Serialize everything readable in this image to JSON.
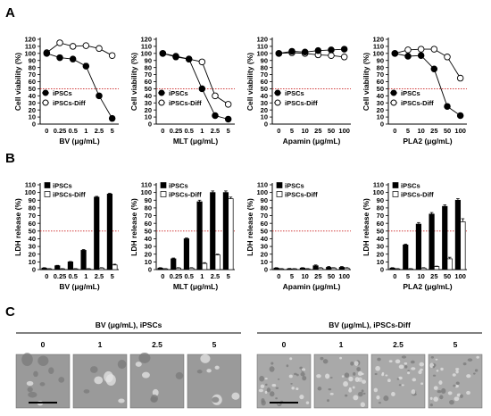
{
  "panel_labels": {
    "a": "A",
    "b": "B",
    "c": "C"
  },
  "legend": {
    "s1": "iPSCs",
    "s2": "iPSCs-Diff"
  },
  "colors": {
    "s1": "#000000",
    "s2": "#ffffff",
    "threshold": "#cc2222"
  },
  "chart_data": [
    {
      "type": "line",
      "panel": "A",
      "xlabel": "BV (μg/mL)",
      "ylabel": "Cell viability (%)",
      "categories": [
        "0",
        "0.25",
        "0.5",
        "1",
        "2.5",
        "5"
      ],
      "ylim": [
        0,
        120
      ],
      "ytick_step": 10,
      "threshold": 50,
      "series": [
        {
          "name": "iPSCs",
          "values": [
            100,
            94,
            92,
            82,
            40,
            8
          ],
          "errors": [
            0,
            3,
            2,
            4,
            2,
            1
          ]
        },
        {
          "name": "iPSCs-Diff",
          "values": [
            101,
            115,
            110,
            111,
            107,
            97
          ],
          "errors": [
            1,
            2,
            2,
            2,
            2,
            2
          ]
        }
      ]
    },
    {
      "type": "line",
      "panel": "A",
      "xlabel": "MLT (μg/mL)",
      "ylabel": "Cell viability (%)",
      "categories": [
        "0",
        "0.25",
        "0.5",
        "1",
        "2.5",
        "5"
      ],
      "ylim": [
        0,
        120
      ],
      "ytick_step": 10,
      "threshold": 50,
      "series": [
        {
          "name": "iPSCs",
          "values": [
            100,
            95,
            92,
            50,
            12,
            7
          ],
          "errors": [
            0,
            2,
            2,
            2,
            1,
            1
          ]
        },
        {
          "name": "iPSCs-Diff",
          "values": [
            100,
            96,
            92,
            88,
            40,
            28
          ],
          "errors": [
            0,
            2,
            2,
            2,
            2,
            2
          ]
        }
      ]
    },
    {
      "type": "line",
      "panel": "A",
      "xlabel": "Apamin (μg/mL)",
      "ylabel": "Cell viability (%)",
      "categories": [
        "0",
        "5",
        "10",
        "25",
        "50",
        "100"
      ],
      "ylim": [
        0,
        120
      ],
      "ytick_step": 10,
      "threshold": 50,
      "series": [
        {
          "name": "iPSCs",
          "values": [
            100,
            103,
            102,
            104,
            105,
            106
          ],
          "errors": [
            0,
            3,
            2,
            3,
            3,
            2
          ]
        },
        {
          "name": "iPSCs-Diff",
          "values": [
            100,
            101,
            100,
            98,
            97,
            95
          ],
          "errors": [
            0,
            2,
            2,
            2,
            2,
            2
          ]
        }
      ]
    },
    {
      "type": "line",
      "panel": "A",
      "xlabel": "PLA2 (μg/mL)",
      "ylabel": "Cell viability (%)",
      "categories": [
        "0",
        "5",
        "10",
        "25",
        "50",
        "100"
      ],
      "ylim": [
        0,
        120
      ],
      "ytick_step": 10,
      "threshold": 50,
      "series": [
        {
          "name": "iPSCs",
          "values": [
            100,
            96,
            97,
            78,
            25,
            12
          ],
          "errors": [
            0,
            3,
            3,
            3,
            2,
            2
          ]
        },
        {
          "name": "iPSCs-Diff",
          "values": [
            100,
            105,
            106,
            106,
            95,
            65
          ],
          "errors": [
            0,
            2,
            2,
            2,
            2,
            2
          ]
        }
      ]
    },
    {
      "type": "bar",
      "panel": "B",
      "xlabel": "BV (μg/mL)",
      "ylabel": "LDH release (%)",
      "categories": [
        "0",
        "0.25",
        "0.5",
        "1",
        "2.5",
        "5"
      ],
      "ylim": [
        0,
        110
      ],
      "ytick_step": 10,
      "threshold": 50,
      "series": [
        {
          "name": "iPSCs",
          "values": [
            2,
            5,
            10,
            25,
            94,
            98
          ],
          "errors": [
            0.5,
            0.5,
            0.5,
            1,
            1,
            1
          ]
        },
        {
          "name": "iPSCs-Diff",
          "values": [
            1,
            1,
            1,
            1,
            2,
            6
          ],
          "errors": [
            0.3,
            0.3,
            0.3,
            0.3,
            0.5,
            1
          ]
        }
      ]
    },
    {
      "type": "bar",
      "panel": "B",
      "xlabel": "MLT (μg/mL)",
      "ylabel": "LDH release (%)",
      "categories": [
        "0",
        "0.25",
        "0.5",
        "1",
        "2.5",
        "5"
      ],
      "ylim": [
        0,
        110
      ],
      "ytick_step": 10,
      "threshold": 50,
      "series": [
        {
          "name": "iPSCs",
          "values": [
            2,
            14,
            40,
            88,
            100,
            100
          ],
          "errors": [
            0.5,
            1,
            1,
            2,
            2,
            2
          ]
        },
        {
          "name": "iPSCs-Diff",
          "values": [
            1,
            2,
            2,
            8,
            19,
            92
          ],
          "errors": [
            0.3,
            0.5,
            0.5,
            1,
            1,
            2
          ]
        }
      ]
    },
    {
      "type": "bar",
      "panel": "B",
      "xlabel": "Apamin (μg/mL)",
      "ylabel": "LDH release (%)",
      "categories": [
        "0",
        "5",
        "10",
        "25",
        "50",
        "100"
      ],
      "ylim": [
        0,
        110
      ],
      "ytick_step": 10,
      "threshold": 50,
      "series": [
        {
          "name": "iPSCs",
          "values": [
            2,
            1,
            2,
            5,
            3,
            3
          ],
          "errors": [
            0.5,
            0.5,
            0.5,
            1,
            1,
            1
          ]
        },
        {
          "name": "iPSCs-Diff",
          "values": [
            1,
            1,
            1,
            2,
            2,
            2
          ],
          "errors": [
            0.3,
            0.3,
            0.3,
            0.5,
            0.5,
            0.5
          ]
        }
      ]
    },
    {
      "type": "bar",
      "panel": "B",
      "xlabel": "PLA2 (μg/mL)",
      "ylabel": "LDH release (%)",
      "categories": [
        "0",
        "5",
        "10",
        "25",
        "50",
        "100"
      ],
      "ylim": [
        0,
        110
      ],
      "ytick_step": 10,
      "threshold": 50,
      "series": [
        {
          "name": "iPSCs",
          "values": [
            2,
            32,
            59,
            72,
            82,
            90
          ],
          "errors": [
            0.5,
            1,
            2,
            2,
            2,
            2
          ]
        },
        {
          "name": "iPSCs-Diff",
          "values": [
            1,
            1,
            2,
            4,
            14,
            62
          ],
          "errors": [
            0.3,
            0.3,
            0.5,
            0.5,
            2,
            4
          ]
        }
      ]
    }
  ],
  "micrographs": [
    {
      "title": "BV (μg/mL), iPSCs",
      "labels": [
        "0",
        "1",
        "2.5",
        "5"
      ]
    },
    {
      "title": "BV (μg/mL), iPSCs-Diff",
      "labels": [
        "0",
        "1",
        "2.5",
        "5"
      ]
    }
  ]
}
